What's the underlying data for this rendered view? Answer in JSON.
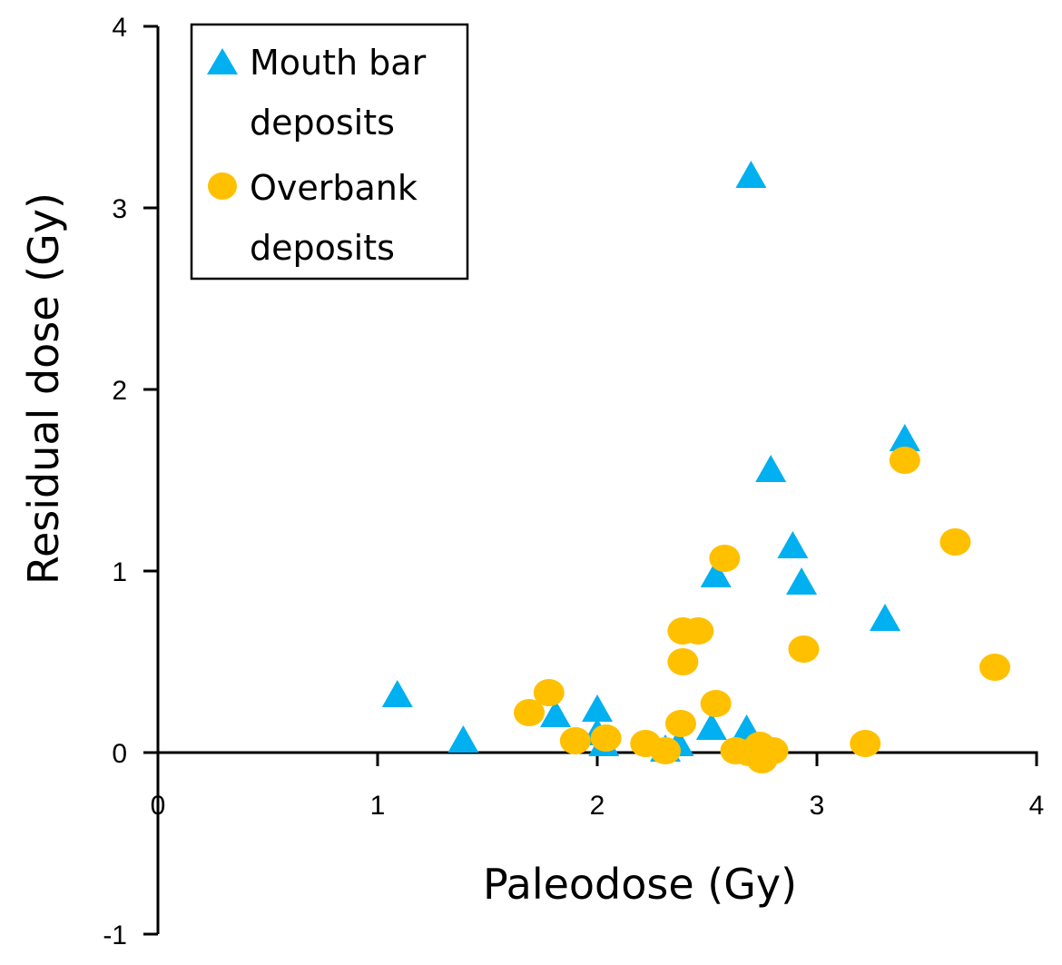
{
  "chart_data": {
    "type": "scatter",
    "title": "",
    "xlabel": "Paleodose (Gy)",
    "ylabel": "Residual dose (Gy)",
    "xlim": [
      0,
      4
    ],
    "ylim": [
      -1,
      4
    ],
    "xticks": [
      0,
      1,
      2,
      3,
      4
    ],
    "yticks": [
      -1,
      0,
      1,
      2,
      3,
      4
    ],
    "xtick_labels": [
      "0",
      "1",
      "2",
      "3",
      "4"
    ],
    "ytick_labels": [
      "-1",
      "0",
      "1",
      "2",
      "3",
      "4"
    ],
    "grid": false,
    "legend_position": "top-left",
    "series": [
      {
        "name": "Mouth bar deposits",
        "legend_lines": [
          "Mouth bar",
          "deposits"
        ],
        "marker": "triangle",
        "color": "#00B0F0",
        "points": [
          [
            1.09,
            0.3
          ],
          [
            1.39,
            0.05
          ],
          [
            1.81,
            0.19
          ],
          [
            2.0,
            0.22
          ],
          [
            2.0,
            0.09
          ],
          [
            2.03,
            0.03
          ],
          [
            2.31,
            0.0
          ],
          [
            2.37,
            0.03
          ],
          [
            2.52,
            0.12
          ],
          [
            2.54,
            0.96
          ],
          [
            2.68,
            0.11
          ],
          [
            2.7,
            3.16
          ],
          [
            2.79,
            1.54
          ],
          [
            2.89,
            1.12
          ],
          [
            2.93,
            0.92
          ],
          [
            3.31,
            0.72
          ],
          [
            3.4,
            1.71
          ]
        ]
      },
      {
        "name": "Overbank deposits",
        "legend_lines": [
          "Overbank",
          "deposits"
        ],
        "marker": "circle",
        "color": "#FFC000",
        "points": [
          [
            1.69,
            0.22
          ],
          [
            1.78,
            0.33
          ],
          [
            1.9,
            0.065
          ],
          [
            2.04,
            0.08
          ],
          [
            2.22,
            0.05
          ],
          [
            2.31,
            0.01
          ],
          [
            2.38,
            0.16
          ],
          [
            2.39,
            0.5
          ],
          [
            2.39,
            0.67
          ],
          [
            2.46,
            0.67
          ],
          [
            2.54,
            0.27
          ],
          [
            2.58,
            1.07
          ],
          [
            2.63,
            0.01
          ],
          [
            2.69,
            0.0
          ],
          [
            2.74,
            0.04
          ],
          [
            2.75,
            -0.04
          ],
          [
            2.8,
            0.01
          ],
          [
            2.94,
            0.57
          ],
          [
            3.22,
            0.05
          ],
          [
            3.4,
            1.61
          ],
          [
            3.63,
            1.16
          ],
          [
            3.81,
            0.47
          ]
        ]
      }
    ]
  }
}
